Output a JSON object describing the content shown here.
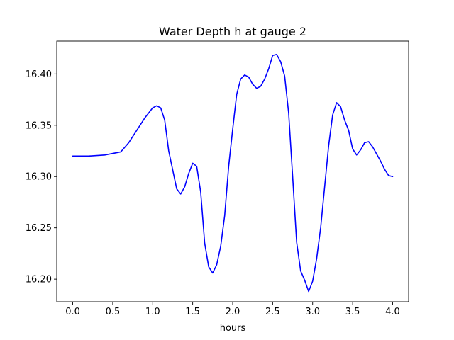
{
  "chart_data": {
    "type": "line",
    "title": "Water Depth h at gauge 2",
    "xlabel": "hours",
    "ylabel": "",
    "xlim": [
      -0.2,
      4.2
    ],
    "ylim": [
      16.178,
      16.432
    ],
    "xticks": [
      0.0,
      0.5,
      1.0,
      1.5,
      2.0,
      2.5,
      3.0,
      3.5,
      4.0
    ],
    "xtick_labels": [
      "0.0",
      "0.5",
      "1.0",
      "1.5",
      "2.0",
      "2.5",
      "3.0",
      "3.5",
      "4.0"
    ],
    "yticks": [
      16.2,
      16.25,
      16.3,
      16.35,
      16.4
    ],
    "ytick_labels": [
      "16.20",
      "16.25",
      "16.30",
      "16.35",
      "16.40"
    ],
    "grid": false,
    "series": [
      {
        "color": "#0000ff",
        "x": [
          0.0,
          0.2,
          0.4,
          0.6,
          0.7,
          0.8,
          0.9,
          1.0,
          1.05,
          1.1,
          1.15,
          1.2,
          1.3,
          1.35,
          1.4,
          1.45,
          1.5,
          1.55,
          1.6,
          1.65,
          1.7,
          1.75,
          1.8,
          1.85,
          1.9,
          1.95,
          2.0,
          2.05,
          2.1,
          2.15,
          2.2,
          2.25,
          2.3,
          2.35,
          2.4,
          2.45,
          2.5,
          2.55,
          2.6,
          2.65,
          2.7,
          2.75,
          2.8,
          2.85,
          2.9,
          2.95,
          3.0,
          3.05,
          3.1,
          3.15,
          3.2,
          3.25,
          3.3,
          3.35,
          3.4,
          3.45,
          3.5,
          3.55,
          3.6,
          3.65,
          3.7,
          3.75,
          3.8,
          3.85,
          3.9,
          3.95,
          4.0
        ],
        "y": [
          16.32,
          16.32,
          16.321,
          16.324,
          16.333,
          16.345,
          16.357,
          16.367,
          16.369,
          16.367,
          16.355,
          16.325,
          16.288,
          16.283,
          16.29,
          16.303,
          16.313,
          16.31,
          16.285,
          16.235,
          16.212,
          16.206,
          16.214,
          16.232,
          16.262,
          16.31,
          16.346,
          16.38,
          16.395,
          16.399,
          16.397,
          16.39,
          16.386,
          16.388,
          16.395,
          16.405,
          16.418,
          16.419,
          16.412,
          16.398,
          16.362,
          16.3,
          16.236,
          16.208,
          16.199,
          16.188,
          16.198,
          16.22,
          16.25,
          16.29,
          16.33,
          16.36,
          16.372,
          16.368,
          16.355,
          16.345,
          16.327,
          16.321,
          16.326,
          16.333,
          16.334,
          16.329,
          16.322,
          16.315,
          16.307,
          16.301,
          16.3
        ]
      }
    ]
  }
}
